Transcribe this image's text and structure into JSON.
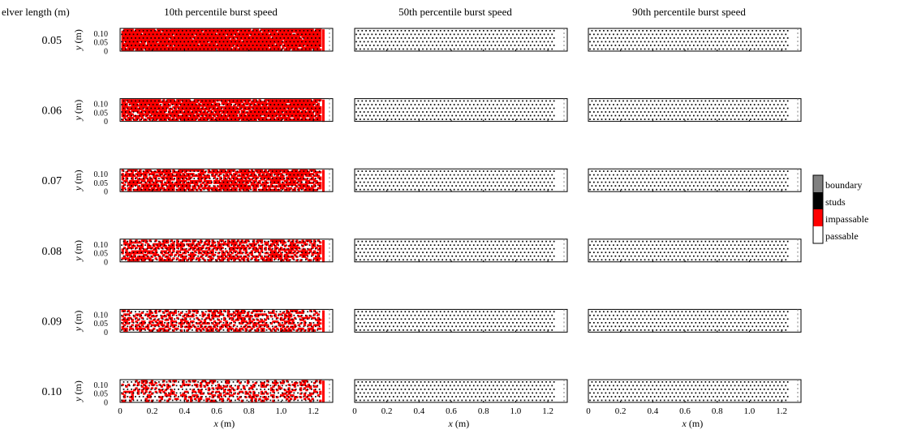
{
  "colors": {
    "boundary": "#808080",
    "studs": "#000000",
    "impassable": "#ff0000",
    "passable": "#ffffff"
  },
  "chart_data": {
    "type": "heatmap",
    "row_header": "elver length (m)",
    "column_titles": [
      "10th percentile burst speed",
      "50th percentile burst speed",
      "90th percentile burst speed"
    ],
    "row_labels": [
      "0.05",
      "0.06",
      "0.07",
      "0.08",
      "0.09",
      "0.10"
    ],
    "xlabel_var": "x",
    "xlabel_unit": " (m)",
    "ylabel_var": "y",
    "ylabel_unit": " (m)",
    "xlim": [
      0,
      1.3
    ],
    "ylim": [
      0,
      0.13
    ],
    "xticks": [
      "0",
      "0.2",
      "0.4",
      "0.6",
      "0.8",
      "1.0",
      "1.2"
    ],
    "yticks": [
      "0",
      "0.05",
      "0.10"
    ],
    "legend": {
      "position": "right",
      "entries": [
        "boundary",
        "studs",
        "impassable",
        "passable"
      ]
    },
    "channel": {
      "stud_columns": 51,
      "stud_rows": 6,
      "stud_x_start": 0.01,
      "stud_x_end": 1.25,
      "stud_y_values": [
        0.012,
        0.033,
        0.054,
        0.075,
        0.096,
        0.117
      ],
      "exit_x": 1.26
    },
    "impassable_fraction": [
      [
        0.95,
        0.0,
        0.0
      ],
      [
        0.85,
        0.0,
        0.0
      ],
      [
        0.7,
        0.0,
        0.0
      ],
      [
        0.55,
        0.0,
        0.0
      ],
      [
        0.4,
        0.0,
        0.0
      ],
      [
        0.3,
        0.0,
        0.0
      ]
    ]
  }
}
